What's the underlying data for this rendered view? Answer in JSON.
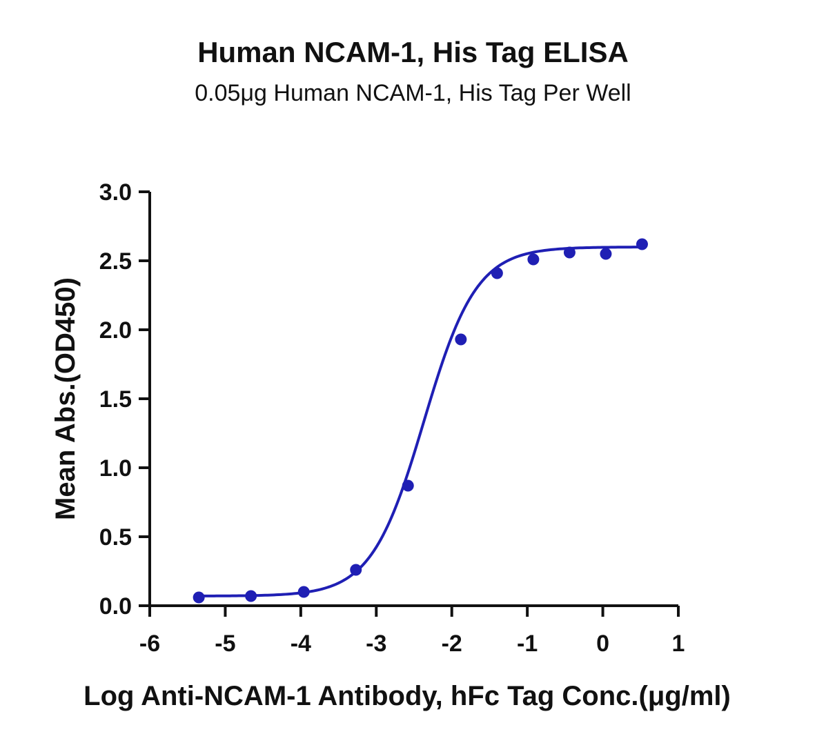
{
  "chart_data": {
    "type": "scatter",
    "title": "Human NCAM-1, His Tag ELISA",
    "subtitle": "0.05μg Human NCAM-1, His Tag Per Well",
    "xlabel": "Log Anti-NCAM-1 Antibody, hFc Tag Conc.(μg/ml)",
    "ylabel": "Mean Abs.(OD450)",
    "xlim": [
      -6,
      1
    ],
    "ylim": [
      0,
      3.0
    ],
    "xticks": [
      "-6",
      "-5",
      "-4",
      "-3",
      "-2",
      "-1",
      "0",
      "1"
    ],
    "yticks": [
      "0.0",
      "0.5",
      "1.0",
      "1.5",
      "2.0",
      "2.5",
      "3.0"
    ],
    "series": [
      {
        "x": [
          -5.35,
          -4.66,
          -3.96,
          -3.27,
          -2.58,
          -1.88,
          -1.4,
          -0.92,
          -0.44,
          0.04,
          0.52
        ],
        "y": [
          0.06,
          0.07,
          0.1,
          0.26,
          0.87,
          1.93,
          2.41,
          2.51,
          2.56,
          2.55,
          2.62
        ],
        "color": "#1f1fb4"
      }
    ],
    "fit_curve": {
      "type": "4PL",
      "bottom": 0.07,
      "top": 2.6,
      "log_ec50": -2.37,
      "hill_slope": 1.25
    },
    "grid": false,
    "legend": "none"
  }
}
